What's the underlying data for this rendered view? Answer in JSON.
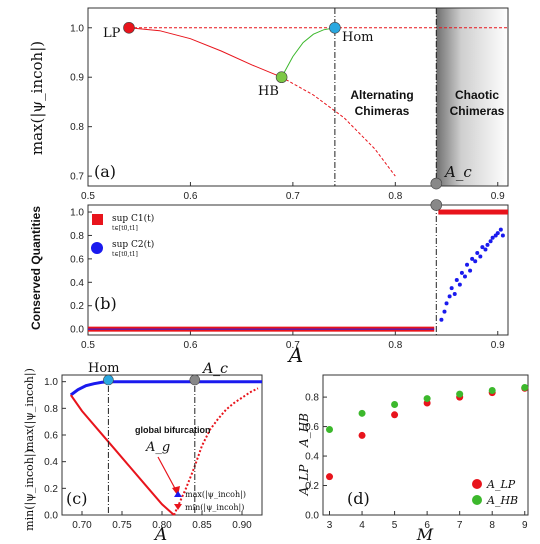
{
  "chart_data": [
    {
      "panel": "(a)",
      "type": "line",
      "ylabel": "max(|ψ_incoh|)",
      "xlim": [
        0.5,
        0.91
      ],
      "ylim": [
        0.68,
        1.04
      ],
      "xticks": [
        "0.5",
        "0.6",
        "0.7",
        "0.8",
        "0.9"
      ],
      "yticks": [
        "0.7",
        "0.8",
        "0.9",
        "1.0"
      ],
      "region_labels": {
        "alternating": [
          "Alternating",
          "Chimeras"
        ],
        "chaotic": [
          "Chaotic",
          "Chimeras"
        ]
      },
      "special_points": [
        {
          "name": "LP",
          "x": 0.54,
          "y": 1.0,
          "color": "#e8141c"
        },
        {
          "name": "HB",
          "x": 0.689,
          "y": 0.9,
          "color": "#7cc845"
        },
        {
          "name": "Hom",
          "x": 0.741,
          "y": 1.0,
          "color": "#2aa8e0"
        },
        {
          "name": "A_c",
          "x": 0.84,
          "y": 0.685,
          "color": "#888888"
        }
      ],
      "series": [
        {
          "style": "red solid",
          "x": [
            0.54,
            0.57,
            0.6,
            0.63,
            0.66,
            0.689
          ],
          "y": [
            1.0,
            0.994,
            0.978,
            0.953,
            0.925,
            0.9
          ]
        },
        {
          "style": "red dashed",
          "x": [
            0.689,
            0.72,
            0.75,
            0.78,
            0.8
          ],
          "y": [
            0.9,
            0.864,
            0.818,
            0.755,
            0.7
          ]
        },
        {
          "style": "green solid",
          "x": [
            0.689,
            0.7,
            0.71,
            0.72,
            0.73,
            0.741
          ],
          "y": [
            0.9,
            0.942,
            0.97,
            0.987,
            0.996,
            1.0
          ]
        },
        {
          "style": "red dashed",
          "x": [
            0.54,
            0.91
          ],
          "y": [
            1.0,
            1.0
          ]
        }
      ]
    },
    {
      "panel": "(b)",
      "type": "scatter",
      "ylabel": "Conserved Quantities",
      "xlabel": "A",
      "xlim": [
        0.5,
        0.91
      ],
      "ylim": [
        -0.05,
        1.06
      ],
      "xticks": [
        "0.5",
        "0.6",
        "0.7",
        "0.8",
        "0.9"
      ],
      "yticks": [
        "0.0",
        "0.2",
        "0.4",
        "0.6",
        "0.8",
        "1.0"
      ],
      "legend": [
        {
          "main": "sup C1(t)",
          "sub": "t∈[t0,t1]",
          "color": "#e8141c",
          "marker": "square"
        },
        {
          "main": "sup C2(t)",
          "sub": "t∈[t0,t1]",
          "color": "#1a1aee",
          "marker": "circle"
        }
      ],
      "series": [
        {
          "name": "C1",
          "x_range": [
            0.5,
            0.838
          ],
          "value_before": 0.0,
          "x_jump": 0.842,
          "value_after": 1.0
        },
        {
          "name": "C2",
          "x_range": [
            0.5,
            0.838
          ],
          "value_before": 0.0,
          "scatter_after": [
            [
              0.845,
              0.08
            ],
            [
              0.848,
              0.15
            ],
            [
              0.85,
              0.22
            ],
            [
              0.853,
              0.28
            ],
            [
              0.855,
              0.35
            ],
            [
              0.858,
              0.3
            ],
            [
              0.86,
              0.42
            ],
            [
              0.863,
              0.38
            ],
            [
              0.865,
              0.48
            ],
            [
              0.868,
              0.45
            ],
            [
              0.87,
              0.55
            ],
            [
              0.873,
              0.5
            ],
            [
              0.875,
              0.6
            ],
            [
              0.878,
              0.58
            ],
            [
              0.88,
              0.65
            ],
            [
              0.883,
              0.62
            ],
            [
              0.885,
              0.7
            ],
            [
              0.888,
              0.68
            ],
            [
              0.89,
              0.72
            ],
            [
              0.893,
              0.75
            ],
            [
              0.895,
              0.78
            ],
            [
              0.898,
              0.8
            ],
            [
              0.9,
              0.82
            ],
            [
              0.903,
              0.85
            ],
            [
              0.905,
              0.8
            ]
          ]
        }
      ]
    },
    {
      "panel": "(c)",
      "type": "scatter",
      "xlabel": "A",
      "ylabel_top": "max(|ψ_incoh|)",
      "ylabel_bottom": "min(|ψ_incoh|)",
      "xlim": [
        0.675,
        0.925
      ],
      "ylim": [
        0.0,
        1.05
      ],
      "xticks": [
        "0.70",
        "0.75",
        "0.80",
        "0.85",
        "0.90"
      ],
      "yticks": [
        "0.0",
        "0.2",
        "0.4",
        "0.6",
        "0.8",
        "1.0"
      ],
      "annotations": {
        "global": "global bifurcation",
        "ag": "A_g",
        "hom": "Hom",
        "ac": "A_c"
      },
      "special_points": [
        {
          "name": "Hom",
          "x": 0.733,
          "color": "#2aa8e0"
        },
        {
          "name": "A_c",
          "x": 0.841,
          "color": "#888888"
        }
      ],
      "legend": [
        {
          "label": "max(|ψ_incoh|)",
          "color": "#1a1aee",
          "marker": "triangle-up"
        },
        {
          "label": "min(|ψ_incoh|)",
          "color": "#e8141c",
          "marker": "triangle-down"
        }
      ],
      "series": [
        {
          "name": "max",
          "x": [
            0.686,
            0.695,
            0.705,
            0.715,
            0.725,
            0.733,
            0.925
          ],
          "y": [
            0.9,
            0.94,
            0.97,
            0.985,
            0.995,
            1.0,
            1.0
          ]
        },
        {
          "name": "min",
          "x": [
            0.686,
            0.7,
            0.72,
            0.74,
            0.76,
            0.78,
            0.8,
            0.815
          ],
          "y": [
            0.9,
            0.78,
            0.64,
            0.5,
            0.36,
            0.22,
            0.08,
            0.0
          ]
        },
        {
          "name": "min-right",
          "x": [
            0.815,
            0.83,
            0.84,
            0.85,
            0.86,
            0.87,
            0.88,
            0.89,
            0.9,
            0.91,
            0.92
          ],
          "y": [
            0.0,
            0.2,
            0.35,
            0.52,
            0.64,
            0.72,
            0.79,
            0.84,
            0.88,
            0.92,
            0.95
          ]
        }
      ]
    },
    {
      "panel": "(d)",
      "type": "scatter",
      "xlabel": "M",
      "ylabel_top": "A_HB",
      "ylabel_bottom": "A_LP",
      "xlim": [
        2.8,
        9.1
      ],
      "ylim": [
        0.0,
        0.95
      ],
      "xticks": [
        "3",
        "4",
        "5",
        "6",
        "7",
        "8",
        "9"
      ],
      "yticks": [
        "0.0",
        "0.2",
        "0.4",
        "0.6",
        "0.8"
      ],
      "legend": [
        {
          "label": "A_LP",
          "color": "#e8141c"
        },
        {
          "label": "A_HB",
          "color": "#3cb82c"
        }
      ],
      "series": [
        {
          "name": "A_LP",
          "x": [
            3,
            4,
            5,
            6,
            7,
            8,
            9
          ],
          "y": [
            0.26,
            0.54,
            0.68,
            0.76,
            0.8,
            0.83,
            0.86
          ]
        },
        {
          "name": "A_HB",
          "x": [
            3,
            4,
            5,
            6,
            7,
            8,
            9
          ],
          "y": [
            0.58,
            0.69,
            0.75,
            0.79,
            0.82,
            0.845,
            0.865
          ]
        }
      ]
    }
  ]
}
